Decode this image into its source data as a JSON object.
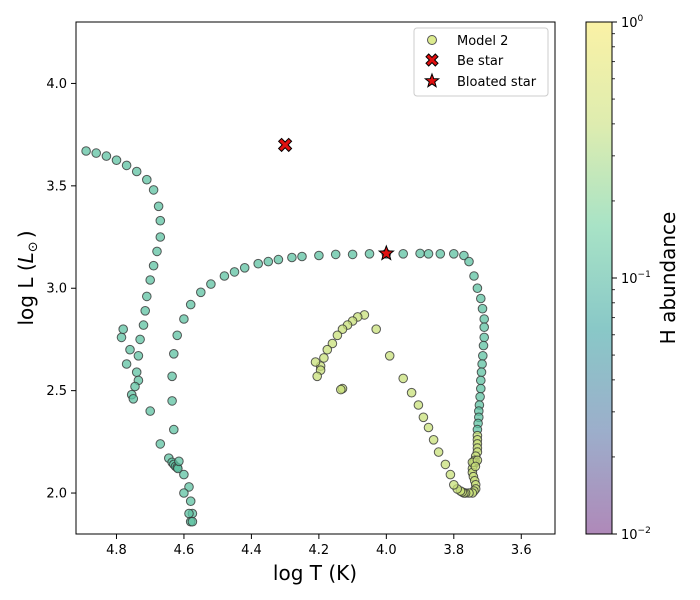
{
  "chart_data": {
    "type": "scatter",
    "xlabel": "log T (K)",
    "ylabel": "log L (L_⊙)",
    "ylabel_main": "log L (",
    "ylabel_symbol": "L",
    "ylabel_sub": "⊙",
    "ylabel_close": ")",
    "xlim": [
      4.92,
      3.5
    ],
    "ylim": [
      1.8,
      4.3
    ],
    "x_ticks": [
      4.8,
      4.6,
      4.4,
      4.2,
      4.0,
      3.8,
      3.6
    ],
    "x_tick_labels": [
      "4.8",
      "4.6",
      "4.4",
      "4.2",
      "4.0",
      "3.8",
      "3.6"
    ],
    "y_ticks": [
      2.0,
      2.5,
      3.0,
      3.5,
      4.0
    ],
    "y_tick_labels": [
      "2.0",
      "2.5",
      "3.0",
      "3.5",
      "4.0"
    ],
    "grid": false,
    "legend_position": "top-right",
    "legend": [
      "Model 2",
      "Be star",
      "Bloated star"
    ],
    "colorbar": {
      "label": "H abundance",
      "scale": "log",
      "range": [
        0.01,
        1.0
      ],
      "ticks": [
        {
          "value": 1.0,
          "base": "10",
          "exp": "0"
        },
        {
          "value": 0.1,
          "base": "10",
          "exp": "−1"
        },
        {
          "value": 0.01,
          "base": "10",
          "exp": "−2"
        }
      ],
      "colormap": [
        "#7a3a8a",
        "#5a78a8",
        "#3aa3a2",
        "#6ed0a0",
        "#c8e07a",
        "#f7e96a"
      ],
      "cmap_opacity": 0.6
    },
    "series": [
      {
        "name": "Model 2",
        "color_by": "H abundance",
        "groups": [
          {
            "h_abundance": 0.12,
            "points": [
              [
                4.89,
                3.67
              ],
              [
                4.86,
                3.66
              ],
              [
                4.83,
                3.645
              ],
              [
                4.8,
                3.625
              ],
              [
                4.77,
                3.6
              ],
              [
                4.74,
                3.57
              ],
              [
                4.71,
                3.53
              ],
              [
                4.69,
                3.48
              ],
              [
                4.675,
                3.4
              ],
              [
                4.67,
                3.33
              ],
              [
                4.67,
                3.25
              ],
              [
                4.68,
                3.18
              ],
              [
                4.69,
                3.11
              ],
              [
                4.7,
                3.04
              ],
              [
                4.71,
                2.96
              ],
              [
                4.715,
                2.89
              ],
              [
                4.72,
                2.82
              ],
              [
                4.73,
                2.75
              ],
              [
                4.735,
                2.67
              ],
              [
                4.74,
                2.59
              ],
              [
                4.735,
                2.55
              ],
              [
                4.745,
                2.52
              ],
              [
                4.755,
                2.48
              ],
              [
                4.75,
                2.46
              ],
              [
                4.76,
                2.7
              ],
              [
                4.77,
                2.63
              ],
              [
                4.785,
                2.76
              ],
              [
                4.78,
                2.8
              ],
              [
                4.7,
                2.4
              ],
              [
                4.67,
                2.24
              ],
              [
                4.645,
                2.17
              ],
              [
                4.635,
                2.15
              ],
              [
                4.63,
                2.14
              ],
              [
                4.625,
                2.13
              ],
              [
                4.62,
                2.125
              ],
              [
                4.618,
                2.12
              ],
              [
                4.615,
                2.155
              ],
              [
                4.6,
                2.09
              ],
              [
                4.585,
                2.03
              ],
              [
                4.58,
                1.96
              ],
              [
                4.575,
                1.9
              ],
              [
                4.585,
                1.9
              ],
              [
                4.58,
                1.86
              ],
              [
                4.575,
                1.86
              ],
              [
                4.6,
                2.0
              ],
              [
                4.63,
                2.31
              ],
              [
                4.635,
                2.45
              ],
              [
                4.635,
                2.57
              ],
              [
                4.63,
                2.68
              ],
              [
                4.62,
                2.77
              ],
              [
                4.6,
                2.85
              ],
              [
                4.58,
                2.92
              ],
              [
                4.55,
                2.98
              ],
              [
                4.52,
                3.02
              ],
              [
                4.48,
                3.06
              ],
              [
                4.45,
                3.08
              ],
              [
                4.42,
                3.1
              ],
              [
                4.38,
                3.12
              ],
              [
                4.35,
                3.13
              ],
              [
                4.32,
                3.14
              ],
              [
                4.28,
                3.15
              ],
              [
                4.25,
                3.155
              ],
              [
                4.2,
                3.16
              ],
              [
                4.15,
                3.165
              ],
              [
                4.1,
                3.165
              ],
              [
                4.05,
                3.168
              ],
              [
                4.0,
                3.168
              ],
              [
                3.95,
                3.168
              ],
              [
                3.9,
                3.17
              ],
              [
                3.875,
                3.168
              ],
              [
                3.84,
                3.168
              ],
              [
                3.8,
                3.168
              ],
              [
                3.77,
                3.16
              ],
              [
                3.755,
                3.13
              ],
              [
                3.74,
                3.06
              ],
              [
                3.73,
                3.0
              ],
              [
                3.72,
                2.95
              ],
              [
                3.715,
                2.9
              ],
              [
                3.71,
                2.85
              ],
              [
                3.71,
                2.81
              ],
              [
                3.71,
                2.76
              ],
              [
                3.712,
                2.72
              ],
              [
                3.714,
                2.67
              ],
              [
                3.716,
                2.63
              ],
              [
                3.718,
                2.59
              ],
              [
                3.72,
                2.55
              ],
              [
                3.72,
                2.51
              ],
              [
                3.722,
                2.47
              ],
              [
                3.724,
                2.43
              ],
              [
                3.726,
                2.4
              ],
              [
                3.726,
                2.37
              ],
              [
                3.728,
                2.34
              ],
              [
                3.73,
                2.31
              ]
            ]
          },
          {
            "h_abundance": 0.4,
            "points": [
              [
                3.73,
                2.28
              ],
              [
                3.73,
                2.26
              ],
              [
                3.73,
                2.24
              ],
              [
                3.73,
                2.22
              ],
              [
                3.73,
                2.2
              ],
              [
                3.735,
                2.18
              ],
              [
                3.738,
                2.16
              ],
              [
                3.74,
                2.14
              ],
              [
                3.745,
                2.12
              ],
              [
                3.745,
                2.1
              ],
              [
                3.742,
                2.08
              ],
              [
                3.738,
                2.06
              ],
              [
                3.735,
                2.04
              ],
              [
                3.735,
                2.02
              ],
              [
                3.74,
                2.01
              ],
              [
                3.745,
                2.0
              ],
              [
                3.755,
                2.0
              ],
              [
                3.765,
                2.0
              ],
              [
                3.77,
                2.0
              ],
              [
                3.775,
                2.005
              ],
              [
                3.78,
                2.01
              ],
              [
                3.79,
                2.02
              ],
              [
                3.8,
                2.04
              ],
              [
                3.81,
                2.09
              ],
              [
                3.825,
                2.14
              ],
              [
                3.845,
                2.2
              ],
              [
                3.86,
                2.26
              ],
              [
                3.875,
                2.32
              ],
              [
                3.89,
                2.37
              ],
              [
                3.905,
                2.43
              ],
              [
                3.925,
                2.49
              ],
              [
                3.95,
                2.56
              ],
              [
                3.99,
                2.67
              ],
              [
                4.03,
                2.8
              ],
              [
                4.065,
                2.87
              ],
              [
                4.085,
                2.86
              ],
              [
                4.1,
                2.84
              ],
              [
                4.115,
                2.82
              ],
              [
                4.13,
                2.8
              ],
              [
                4.145,
                2.77
              ],
              [
                4.16,
                2.73
              ],
              [
                4.175,
                2.7
              ],
              [
                4.185,
                2.66
              ],
              [
                4.195,
                2.62
              ],
              [
                4.195,
                2.6
              ],
              [
                4.205,
                2.57
              ],
              [
                4.21,
                2.64
              ],
              [
                4.13,
                2.51
              ],
              [
                4.135,
                2.505
              ],
              [
                3.735,
                2.15
              ],
              [
                3.74,
                2.15
              ],
              [
                3.745,
                2.15
              ],
              [
                3.73,
                2.16
              ],
              [
                3.736,
                2.13
              ]
            ]
          }
        ]
      },
      {
        "name": "Be star",
        "marker": "X",
        "color": "#e01010",
        "points": [
          [
            4.3,
            3.7
          ]
        ]
      },
      {
        "name": "Bloated star",
        "marker": "star",
        "color": "#e01010",
        "points": [
          [
            4.0,
            3.17
          ]
        ]
      }
    ]
  }
}
